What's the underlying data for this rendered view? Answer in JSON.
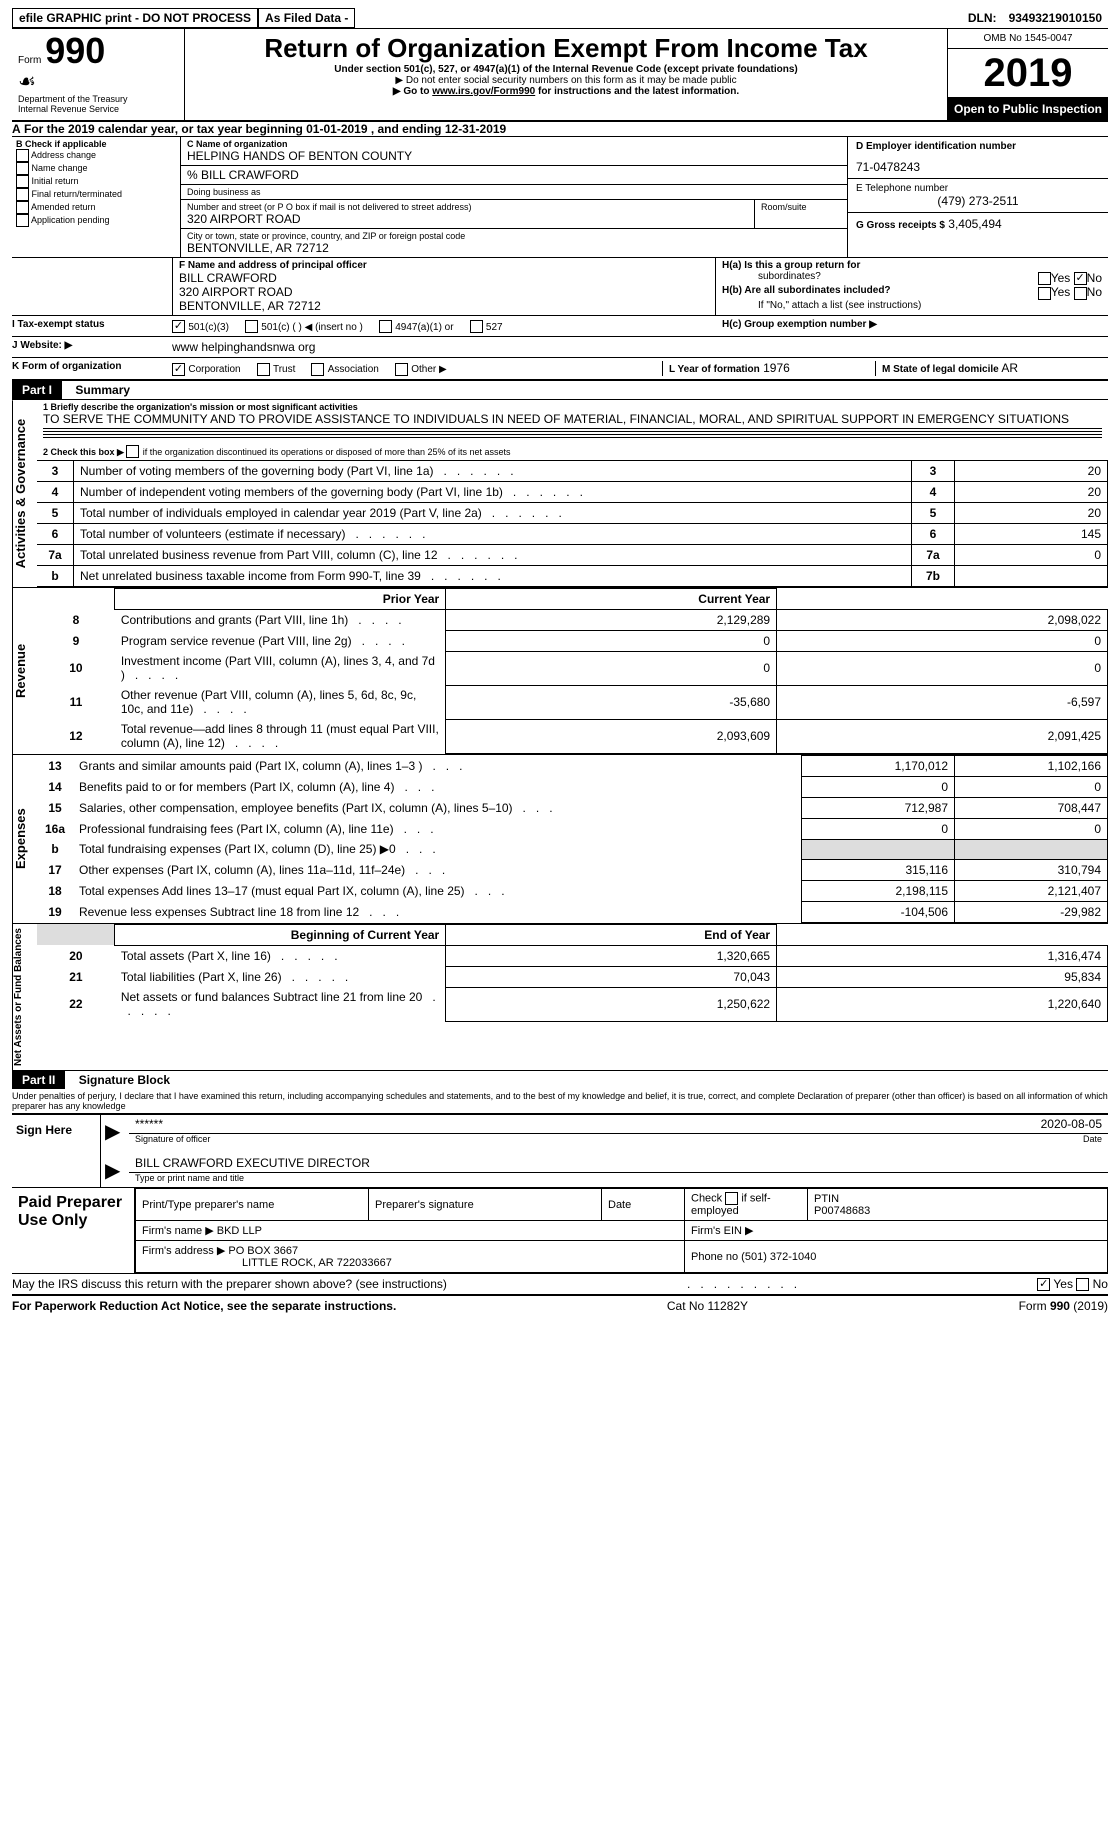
{
  "top": {
    "efile": "efile GRAPHIC print - DO NOT PROCESS",
    "asfiled": "As Filed Data -",
    "dln_label": "DLN:",
    "dln": "93493219010150"
  },
  "header": {
    "form_text": "Form",
    "form_number": "990",
    "dept": "Department of the Treasury",
    "irs": "Internal Revenue Service",
    "title": "Return of Organization Exempt From Income Tax",
    "subtitle": "Under section 501(c), 527, or 4947(a)(1) of the Internal Revenue Code (except private foundations)",
    "note1": "▶ Do not enter social security numbers on this form as it may be made public",
    "note2_a": "▶ Go to ",
    "note2_link": "www.irs.gov/Form990",
    "note2_b": " for instructions and the latest information.",
    "omb": "OMB No  1545-0047",
    "year": "2019",
    "open": "Open to Public Inspection"
  },
  "a_line": {
    "prefix": "A",
    "text": "For the 2019 calendar year, or tax year beginning 01-01-2019   , and ending 12-31-2019"
  },
  "b": {
    "label": "B Check if applicable",
    "items": [
      "Address change",
      "Name change",
      "Initial return",
      "Final return/terminated",
      "Amended return",
      "Application pending"
    ]
  },
  "c": {
    "name_label": "C Name of organization",
    "name": "HELPING HANDS OF BENTON COUNTY",
    "careof": "% BILL CRAWFORD",
    "dba_label": "Doing business as",
    "street_label": "Number and street (or P O  box if mail is not delivered to street address)",
    "room_label": "Room/suite",
    "street": "320 AIRPORT ROAD",
    "city_label": "City or town, state or province, country, and ZIP or foreign postal code",
    "city": "BENTONVILLE, AR  72712"
  },
  "d": {
    "label": "D Employer identification number",
    "value": "71-0478243"
  },
  "e": {
    "label": "E Telephone number",
    "value": "(479) 273-2511"
  },
  "g": {
    "label": "G Gross receipts $",
    "value": "3,405,494"
  },
  "f": {
    "label": "F  Name and address of principal officer",
    "name": "BILL CRAWFORD",
    "addr1": "320 AIRPORT ROAD",
    "addr2": "BENTONVILLE, AR  72712"
  },
  "h": {
    "a_label": "H(a)  Is this a group return for",
    "a_sub": "subordinates?",
    "b_label": "H(b)  Are all subordinates included?",
    "b_note": "If \"No,\" attach a list  (see instructions)",
    "c_label": "H(c)  Group exemption number ▶",
    "yes": "Yes",
    "no": "No"
  },
  "i": {
    "label": "I   Tax-exempt status",
    "opts": [
      "501(c)(3)",
      "501(c) (   ) ◀ (insert no )",
      "4947(a)(1) or",
      "527"
    ]
  },
  "j": {
    "label": "J   Website: ▶",
    "value": "www helpinghandsnwa org"
  },
  "k": {
    "label": "K Form of organization",
    "opts": [
      "Corporation",
      "Trust",
      "Association",
      "Other ▶"
    ]
  },
  "l": {
    "label": "L Year of formation",
    "value": "1976"
  },
  "m": {
    "label": "M State of legal domicile",
    "value": "AR"
  },
  "part1": {
    "tag": "Part I",
    "title": "Summary"
  },
  "q1": {
    "label": "1 Briefly describe the organization's mission or most significant activities",
    "text": "TO SERVE THE COMMUNITY AND TO PROVIDE ASSISTANCE TO INDIVIDUALS IN NEED OF MATERIAL, FINANCIAL, MORAL, AND SPIRITUAL SUPPORT IN EMERGENCY SITUATIONS"
  },
  "q2": "2  Check this box ▶          if the organization discontinued its operations or disposed of more than 25% of its net assets",
  "gov_rows": [
    {
      "n": "3",
      "d": "Number of voting members of the governing body (Part VI, line 1a)",
      "box": "3",
      "v": "20"
    },
    {
      "n": "4",
      "d": "Number of independent voting members of the governing body (Part VI, line 1b)",
      "box": "4",
      "v": "20"
    },
    {
      "n": "5",
      "d": "Total number of individuals employed in calendar year 2019 (Part V, line 2a)",
      "box": "5",
      "v": "20"
    },
    {
      "n": "6",
      "d": "Total number of volunteers (estimate if necessary)",
      "box": "6",
      "v": "145"
    },
    {
      "n": "7a",
      "d": "Total unrelated business revenue from Part VIII, column (C), line 12",
      "box": "7a",
      "v": "0"
    },
    {
      "n": "b",
      "d": "Net unrelated business taxable income from Form 990-T, line 39",
      "box": "7b",
      "v": ""
    }
  ],
  "col_headers": {
    "prior": "Prior Year",
    "current": "Current Year"
  },
  "rev_rows": [
    {
      "n": "8",
      "d": "Contributions and grants (Part VIII, line 1h)",
      "p": "2,129,289",
      "c": "2,098,022"
    },
    {
      "n": "9",
      "d": "Program service revenue (Part VIII, line 2g)",
      "p": "0",
      "c": "0"
    },
    {
      "n": "10",
      "d": "Investment income (Part VIII, column (A), lines 3, 4, and 7d )",
      "p": "0",
      "c": "0"
    },
    {
      "n": "11",
      "d": "Other revenue (Part VIII, column (A), lines 5, 6d, 8c, 9c, 10c, and 11e)",
      "p": "-35,680",
      "c": "-6,597"
    },
    {
      "n": "12",
      "d": "Total revenue—add lines 8 through 11 (must equal Part VIII, column (A), line 12)",
      "p": "2,093,609",
      "c": "2,091,425"
    }
  ],
  "exp_rows": [
    {
      "n": "13",
      "d": "Grants and similar amounts paid (Part IX, column (A), lines 1–3 )",
      "p": "1,170,012",
      "c": "1,102,166"
    },
    {
      "n": "14",
      "d": "Benefits paid to or for members (Part IX, column (A), line 4)",
      "p": "0",
      "c": "0"
    },
    {
      "n": "15",
      "d": "Salaries, other compensation, employee benefits (Part IX, column (A), lines 5–10)",
      "p": "712,987",
      "c": "708,447"
    },
    {
      "n": "16a",
      "d": "Professional fundraising fees (Part IX, column (A), line 11e)",
      "p": "0",
      "c": "0"
    },
    {
      "n": "b",
      "d": "Total fundraising expenses (Part IX, column (D), line 25) ▶0",
      "p": "",
      "c": "",
      "shade": true
    },
    {
      "n": "17",
      "d": "Other expenses (Part IX, column (A), lines 11a–11d, 11f–24e)",
      "p": "315,116",
      "c": "310,794"
    },
    {
      "n": "18",
      "d": "Total expenses  Add lines 13–17 (must equal Part IX, column (A), line 25)",
      "p": "2,198,115",
      "c": "2,121,407"
    },
    {
      "n": "19",
      "d": "Revenue less expenses  Subtract line 18 from line 12",
      "p": "-104,506",
      "c": "-29,982"
    }
  ],
  "col_headers2": {
    "beg": "Beginning of Current Year",
    "end": "End of Year"
  },
  "net_rows": [
    {
      "n": "20",
      "d": "Total assets (Part X, line 16)",
      "p": "1,320,665",
      "c": "1,316,474"
    },
    {
      "n": "21",
      "d": "Total liabilities (Part X, line 26)",
      "p": "70,043",
      "c": "95,834"
    },
    {
      "n": "22",
      "d": "Net assets or fund balances  Subtract line 21 from line 20",
      "p": "1,250,622",
      "c": "1,220,640"
    }
  ],
  "part2": {
    "tag": "Part II",
    "title": "Signature Block"
  },
  "perjury": "Under penalties of perjury, I declare that I have examined this return, including accompanying schedules and statements, and to the best of my knowledge and belief, it is true, correct, and complete  Declaration of preparer (other than officer) is based on all information of which preparer has any knowledge",
  "sign": {
    "left": "Sign Here",
    "stars": "******",
    "sig_officer": "Signature of officer",
    "date": "2020-08-05",
    "date_label": "Date",
    "name": "BILL CRAWFORD  EXECUTIVE DIRECTOR",
    "name_label": "Type or print name and title"
  },
  "prep": {
    "left": "Paid Preparer Use Only",
    "h1": "Print/Type preparer's name",
    "h2": "Preparer's signature",
    "h3": "Date",
    "h4a": "Check",
    "h4b": "if self-employed",
    "h5": "PTIN",
    "ptin": "P00748683",
    "firm_name_label": "Firm's name    ▶",
    "firm_name": "BKD LLP",
    "firm_ein_label": "Firm's EIN ▶",
    "firm_addr_label": "Firm's address ▶",
    "firm_addr1": "PO BOX 3667",
    "firm_addr2": "LITTLE ROCK, AR  722033667",
    "phone_label": "Phone no",
    "phone": "(501) 372-1040"
  },
  "discuss": {
    "text": "May the IRS discuss this return with the preparer shown above? (see instructions)",
    "yes": "Yes",
    "no": "No"
  },
  "footer": {
    "left": "For Paperwork Reduction Act Notice, see the separate instructions.",
    "mid": "Cat  No  11282Y",
    "right": "Form 990 (2019)"
  },
  "side_labels": {
    "gov": "Activities & Governance",
    "rev": "Revenue",
    "exp": "Expenses",
    "net": "Net Assets or Fund Balances"
  }
}
